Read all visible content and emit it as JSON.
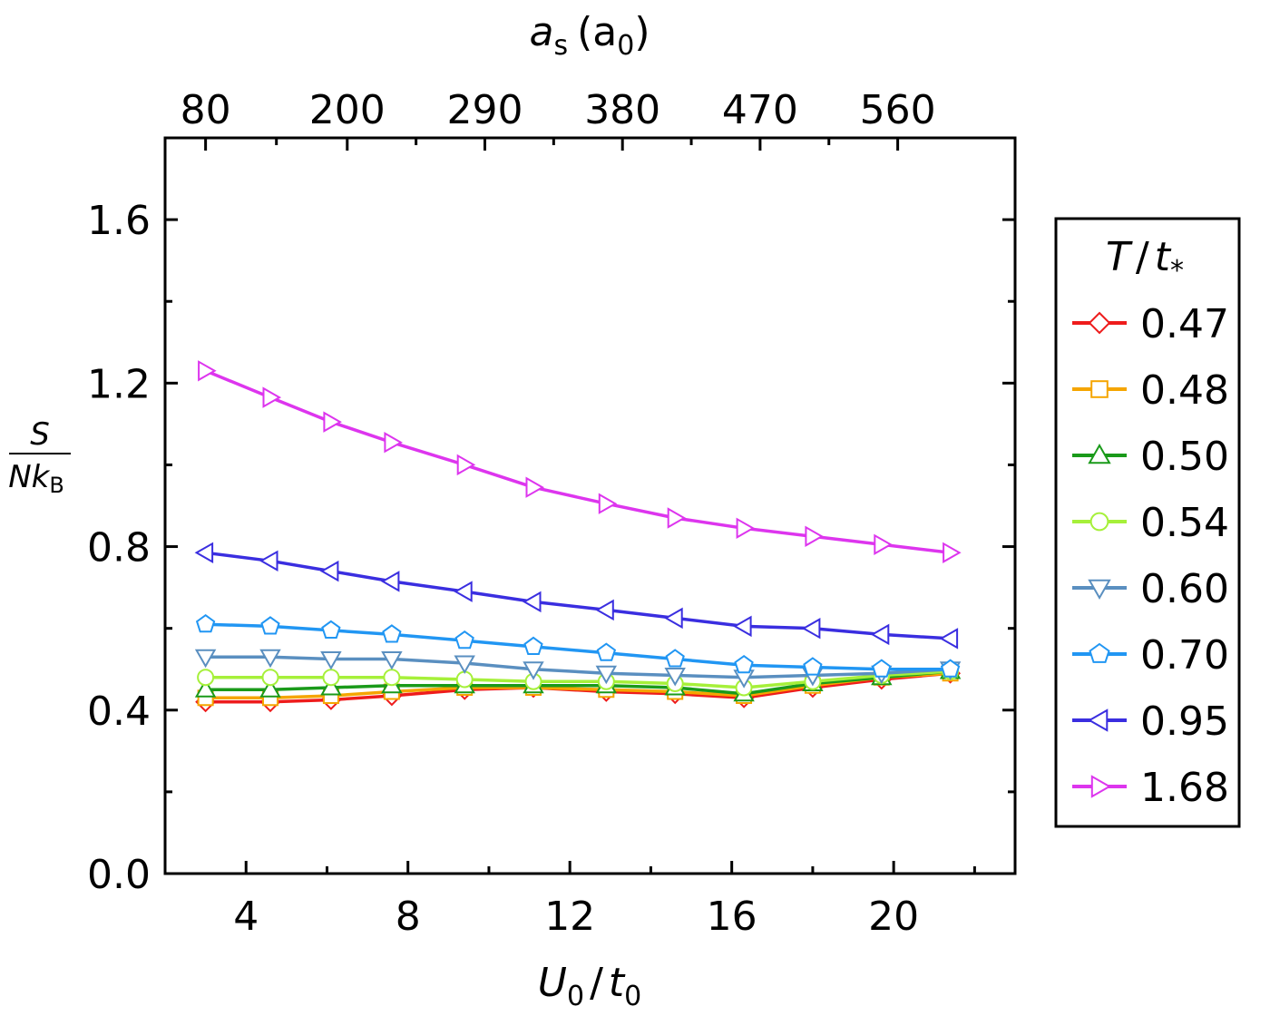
{
  "chart_data": {
    "type": "line",
    "xlabel": {
      "main": "U",
      "sub0": "0",
      "slash": "/",
      "main2": "t",
      "sub2": "0"
    },
    "ylabel": {
      "numerator": "S",
      "denominator": "Nk",
      "sub": "B"
    },
    "top_axis_label": {
      "main": "a",
      "sub": "s",
      "paren": "(a",
      "sub2": "0",
      "close": ")"
    },
    "xlim": [
      2,
      23
    ],
    "ylim": [
      0.0,
      1.8
    ],
    "x_ticks": [
      4,
      8,
      12,
      16,
      20
    ],
    "x_tick_labels": [
      "4",
      "8",
      "12",
      "16",
      "20"
    ],
    "y_ticks": [
      0.0,
      0.4,
      0.8,
      1.2,
      1.6
    ],
    "y_tick_labels": [
      "0.0",
      "0.4",
      "0.8",
      "1.2",
      "1.6"
    ],
    "top_ticks": [
      3,
      6.5,
      9.9,
      13.3,
      16.7,
      20.1
    ],
    "top_tick_labels": [
      "80",
      "200",
      "290",
      "380",
      "470",
      "560"
    ],
    "legend_title": {
      "main": "T",
      "slash": "/",
      "main2": "t",
      "sub": "*"
    },
    "x": [
      3.0,
      4.6,
      6.1,
      7.6,
      9.4,
      11.1,
      12.9,
      14.6,
      16.3,
      18.0,
      19.7,
      21.4
    ],
    "series": [
      {
        "name": "0.47",
        "color": "#ee1c1c",
        "marker": "diamond",
        "values": [
          0.42,
          0.42,
          0.425,
          0.435,
          0.45,
          0.455,
          0.445,
          0.44,
          0.43,
          0.455,
          0.475,
          0.49
        ]
      },
      {
        "name": "0.48",
        "color": "#f5a500",
        "marker": "square",
        "values": [
          0.43,
          0.43,
          0.435,
          0.445,
          0.455,
          0.455,
          0.45,
          0.445,
          0.435,
          0.46,
          0.48,
          0.49
        ]
      },
      {
        "name": "0.50",
        "color": "#1a9a1a",
        "marker": "triangle-up",
        "values": [
          0.45,
          0.45,
          0.455,
          0.46,
          0.46,
          0.46,
          0.46,
          0.455,
          0.44,
          0.465,
          0.48,
          0.495
        ]
      },
      {
        "name": "0.54",
        "color": "#a6f03a",
        "marker": "circle",
        "values": [
          0.48,
          0.48,
          0.48,
          0.48,
          0.475,
          0.47,
          0.47,
          0.465,
          0.455,
          0.47,
          0.485,
          0.495
        ]
      },
      {
        "name": "0.60",
        "color": "#5a8fc0",
        "marker": "triangle-down",
        "values": [
          0.53,
          0.53,
          0.525,
          0.525,
          0.515,
          0.5,
          0.49,
          0.485,
          0.48,
          0.485,
          0.49,
          0.5
        ]
      },
      {
        "name": "0.70",
        "color": "#2196f3",
        "marker": "pentagon",
        "values": [
          0.61,
          0.605,
          0.595,
          0.585,
          0.57,
          0.555,
          0.54,
          0.525,
          0.51,
          0.505,
          0.5,
          0.5
        ]
      },
      {
        "name": "0.95",
        "color": "#3a2ee0",
        "marker": "triangle-left",
        "values": [
          0.785,
          0.765,
          0.74,
          0.715,
          0.69,
          0.665,
          0.645,
          0.625,
          0.605,
          0.6,
          0.585,
          0.575
        ]
      },
      {
        "name": "1.68",
        "color": "#dd35ee",
        "marker": "triangle-right",
        "values": [
          1.23,
          1.165,
          1.105,
          1.055,
          1.0,
          0.945,
          0.905,
          0.87,
          0.845,
          0.825,
          0.805,
          0.785
        ]
      }
    ]
  }
}
